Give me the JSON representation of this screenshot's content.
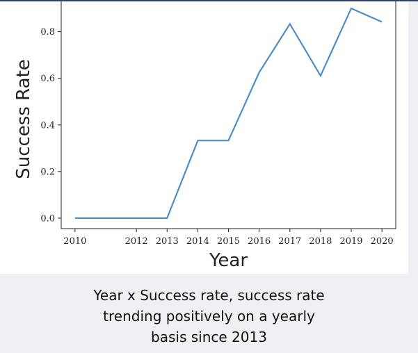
{
  "chart_data": {
    "type": "line",
    "title": "",
    "xlabel": "Year",
    "ylabel": "Success Rate",
    "x": [
      "2010",
      "2011",
      "2012",
      "2013",
      "2014",
      "2015",
      "2016",
      "2017",
      "2018",
      "2019",
      "2020"
    ],
    "x_tick_labels": [
      "2010",
      "2012",
      "2013",
      "2014",
      "2015",
      "2016",
      "2017",
      "2018",
      "2019",
      "2020"
    ],
    "series": [
      {
        "values": [
          0.0,
          0.0,
          0.0,
          0.0,
          0.333,
          0.333,
          0.625,
          0.833,
          0.611,
          0.9,
          0.842
        ],
        "color": "#4c8ec4"
      }
    ],
    "ylim": [
      -0.045,
      0.93
    ],
    "y_ticks": [
      0.0,
      0.2,
      0.4,
      0.6,
      0.8
    ],
    "y_tick_labels": [
      "0.0",
      "0.2",
      "0.4",
      "0.6",
      "0.8"
    ],
    "grid": false,
    "legend": "none"
  },
  "caption": {
    "lines": [
      "Year x Success rate, success rate",
      "trending positively on a yearly",
      "basis since 2013"
    ]
  }
}
